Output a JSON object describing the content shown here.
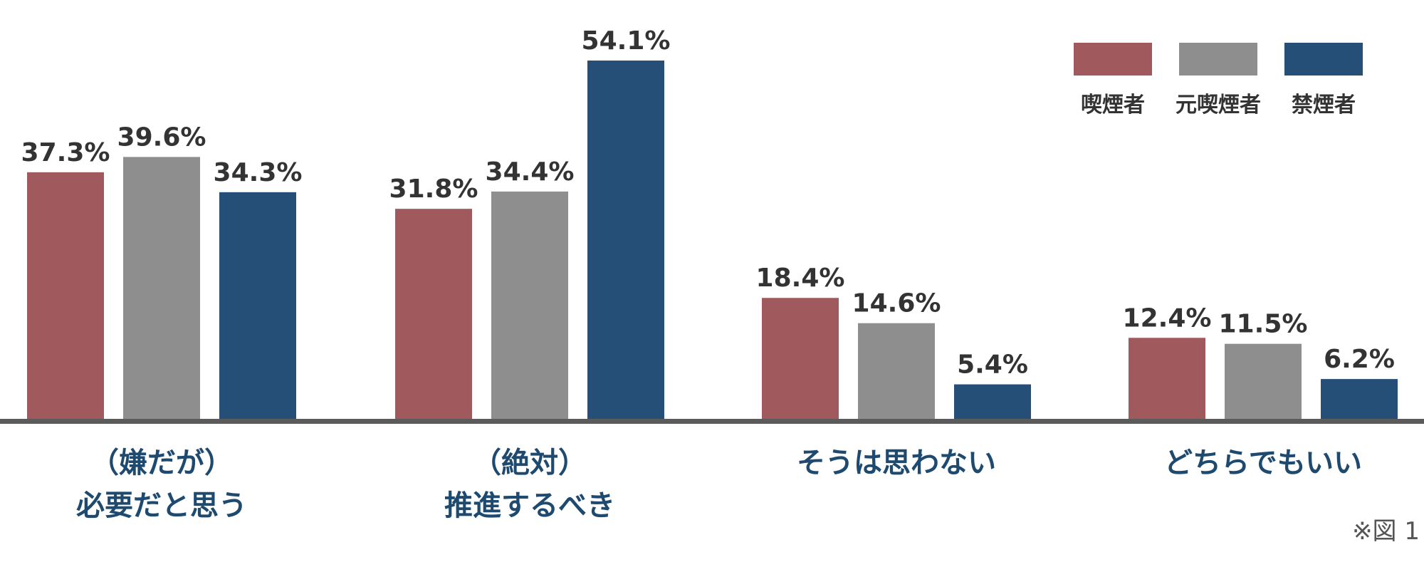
{
  "chart_data": {
    "type": "bar",
    "categories": [
      [
        "（嫌だが）",
        "必要だと思う"
      ],
      [
        "（絶対）",
        "推進するべき"
      ],
      [
        "そうは思わない"
      ],
      [
        "どちらでもいい"
      ]
    ],
    "series": [
      {
        "name": "喫煙者",
        "color": "#a05a5e",
        "values": [
          37.3,
          31.8,
          18.4,
          12.4
        ]
      },
      {
        "name": "元喫煙者",
        "color": "#8e8e8e",
        "values": [
          39.6,
          34.4,
          14.6,
          11.5
        ]
      },
      {
        "name": "禁煙者",
        "color": "#254f77",
        "values": [
          34.3,
          54.1,
          5.4,
          6.2
        ]
      }
    ],
    "value_labels": [
      [
        "37.3%",
        "31.8%",
        "18.4%",
        "12.4%"
      ],
      [
        "39.6%",
        "34.4%",
        "14.6%",
        "11.5%"
      ],
      [
        "34.3%",
        "54.1%",
        "5.4%",
        "6.2%"
      ]
    ],
    "ylim": [
      0,
      54.1
    ],
    "grid": false,
    "legend_position": "top-right",
    "baseline_color": "#5b5b5b",
    "category_label_color": "#1f4a6f",
    "value_label_color": "#333333"
  },
  "footnote": "※図 1"
}
